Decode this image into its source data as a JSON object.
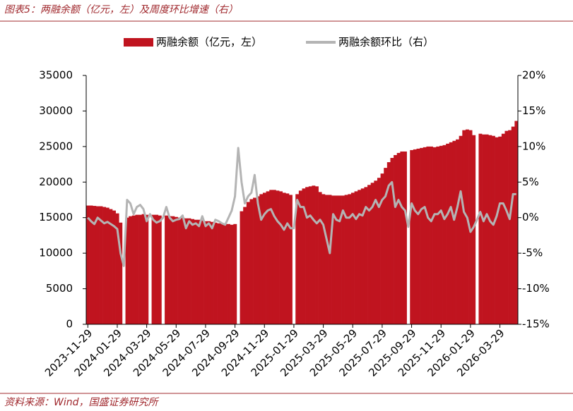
{
  "title": "图表5：两融余额（亿元，左）及周度环比增速（右）",
  "source": "资料来源：Wind，国盛证券研究所",
  "chart_data": {
    "type": "bar",
    "categories": [
      "2023-11-29",
      null,
      null,
      null,
      null,
      null,
      null,
      null,
      null,
      "2024-01-29",
      null,
      null,
      null,
      null,
      null,
      null,
      null,
      null,
      "2024-03-29",
      null,
      null,
      null,
      null,
      null,
      null,
      null,
      null,
      "2024-05-29",
      null,
      null,
      null,
      null,
      null,
      null,
      null,
      null,
      "2024-07-29",
      null,
      null,
      null,
      null,
      null,
      null,
      null,
      null,
      "2024-09-29",
      null,
      null,
      null,
      null,
      null,
      null,
      null,
      null,
      "2024-11-29",
      null,
      null,
      null,
      null,
      null,
      null,
      null,
      null,
      "2025-01-29",
      null,
      null,
      null,
      null,
      null,
      null,
      null,
      null,
      "2025-03-29",
      null,
      null,
      null,
      null,
      null,
      null,
      null,
      null,
      "2025-05-29",
      null,
      null,
      null,
      null,
      null,
      null,
      null,
      null,
      "2025-07-29",
      null,
      null,
      null,
      null,
      null,
      null,
      null,
      null,
      "2025-09-29",
      null,
      null,
      null,
      null,
      null,
      null,
      null,
      null,
      "2025-11-29",
      null,
      null,
      null,
      null,
      null,
      null,
      null,
      null,
      "2026-01-29",
      null,
      null,
      null,
      null,
      null,
      null,
      null,
      null,
      "2026-03-29",
      null,
      null,
      null,
      null,
      null
    ],
    "series": [
      {
        "name": "两融余额（亿元，左）",
        "type": "bar",
        "axis": "y",
        "color": "#c0141f",
        "values": [
          16700,
          16700,
          16650,
          16600,
          16600,
          16500,
          16400,
          16200,
          16000,
          15600,
          14300,
          null,
          15000,
          15200,
          15300,
          15400,
          15400,
          15500,
          15400,
          null,
          15400,
          15400,
          15300,
          null,
          15300,
          15200,
          15200,
          15100,
          15000,
          15000,
          14900,
          14900,
          14800,
          14700,
          14700,
          14600,
          14500,
          14500,
          14400,
          14300,
          14200,
          14200,
          14100,
          14100,
          14000,
          14100,
          null,
          15900,
          16500,
          17200,
          17600,
          17800,
          18000,
          18300,
          18500,
          18700,
          18900,
          18900,
          18800,
          18700,
          18500,
          18400,
          18200,
          null,
          18300,
          18800,
          19100,
          19300,
          19400,
          19500,
          19400,
          18600,
          18300,
          18200,
          18200,
          18100,
          18100,
          18100,
          18100,
          18200,
          18300,
          18500,
          18700,
          18900,
          19100,
          19300,
          19600,
          19900,
          20200,
          20600,
          21200,
          22000,
          22800,
          23400,
          23800,
          24100,
          24300,
          24300,
          null,
          24500,
          24600,
          24700,
          24800,
          24900,
          25000,
          25000,
          24900,
          25000,
          25100,
          25200,
          25400,
          25600,
          25800,
          26000,
          26500,
          27300,
          27400,
          27300,
          26600,
          null,
          26800,
          26700,
          26700,
          26600,
          26500,
          26300,
          26400,
          26800,
          27200,
          27300,
          27800,
          28600
        ]
      },
      {
        "name": "两融余额环比（右）",
        "type": "line",
        "axis": "y2",
        "color": "#b4b4b4",
        "values": [
          0,
          -0.5,
          -0.9,
          0,
          -0.4,
          -0.8,
          -0.6,
          -0.9,
          -1.2,
          -1.6,
          -5,
          -6.8,
          2.5,
          2,
          0.5,
          1.5,
          1.8,
          1.2,
          -0.5,
          0.5,
          -0.3,
          -0.7,
          -0.5,
          0,
          1.5,
          0,
          -0.5,
          -0.3,
          -0.2,
          0.3,
          -1.5,
          -0.5,
          -1,
          -0.8,
          -1.2,
          0.2,
          -1.2,
          -0.8,
          -1.5,
          -0.3,
          -0.5,
          -0.8,
          -1,
          0,
          1,
          3,
          9.8,
          5,
          2,
          3,
          3.5,
          6,
          2,
          -0.3,
          0.5,
          1,
          1.2,
          0.2,
          -0.5,
          -1,
          -1.7,
          -0.8,
          -1.5,
          -1.5,
          2.5,
          1.5,
          1.5,
          0,
          0.3,
          -0.3,
          -0.8,
          -0.3,
          -1,
          -3,
          -5,
          0.5,
          -0.3,
          -0.5,
          1,
          0,
          0,
          0.5,
          -0.2,
          0.5,
          0.3,
          1.5,
          1,
          1.5,
          2.5,
          1.5,
          2.5,
          3,
          4.5,
          5,
          1.5,
          2.5,
          1.5,
          1,
          -1.3,
          2,
          1,
          0.5,
          1.2,
          1.5,
          0,
          -0.5,
          0.5,
          0.5,
          1,
          -0.2,
          0.5,
          1.5,
          -0.3,
          1.5,
          3.7,
          0.8,
          0,
          -2,
          -1.3,
          -0.3,
          0.8,
          -0.5,
          0.5,
          -0.5,
          -1,
          0.2,
          2,
          2,
          1,
          -0.2,
          3.3,
          3.3
        ]
      }
    ],
    "ylim": [
      0,
      35000
    ],
    "yticks": [
      0,
      5000,
      10000,
      15000,
      20000,
      25000,
      30000,
      35000
    ],
    "y2lim": [
      -15,
      20
    ],
    "y2ticks": [
      {
        "value": -15,
        "label": "-15%"
      },
      {
        "value": -10,
        "label": "-10%"
      },
      {
        "value": -5,
        "label": "-5%"
      },
      {
        "value": 0,
        "label": "0%"
      },
      {
        "value": 5,
        "label": "5%"
      },
      {
        "value": 10,
        "label": "10%"
      },
      {
        "value": 15,
        "label": "15%"
      },
      {
        "value": 20,
        "label": "20%"
      }
    ],
    "legend": "top"
  }
}
